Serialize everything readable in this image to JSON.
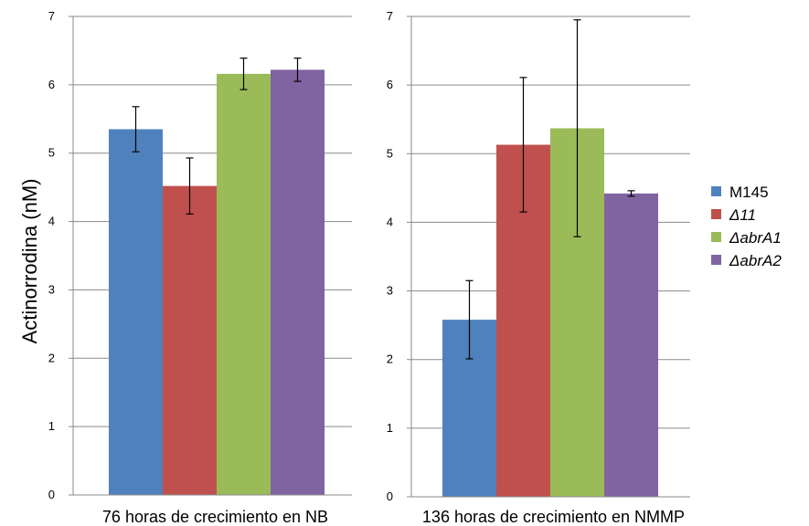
{
  "chart_data": {
    "type": "bar",
    "ylabel": "Actinorrodina (nM)",
    "ylim": [
      0,
      7
    ],
    "yticks": [
      0,
      1,
      2,
      3,
      4,
      5,
      6,
      7
    ],
    "grid": true,
    "legend_position": "right",
    "series": [
      {
        "name": "M145",
        "color": "#4F81BD",
        "italic": false
      },
      {
        "name": "Δ11",
        "color": "#C0504D",
        "italic": true
      },
      {
        "name": "ΔabrA1",
        "color": "#9BBB59",
        "italic": true
      },
      {
        "name": "ΔabrA2",
        "color": "#8064A2",
        "italic": true
      }
    ],
    "panels": [
      {
        "xlabel": "76 horas de crecimiento en NB",
        "values": [
          5.35,
          4.52,
          6.16,
          6.22
        ],
        "errors": [
          0.33,
          0.41,
          0.23,
          0.17
        ]
      },
      {
        "xlabel": "136 horas de crecimiento en NMMP",
        "values": [
          2.58,
          5.13,
          5.37,
          4.42
        ],
        "errors": [
          0.57,
          0.98,
          1.58,
          0.04
        ]
      }
    ]
  }
}
